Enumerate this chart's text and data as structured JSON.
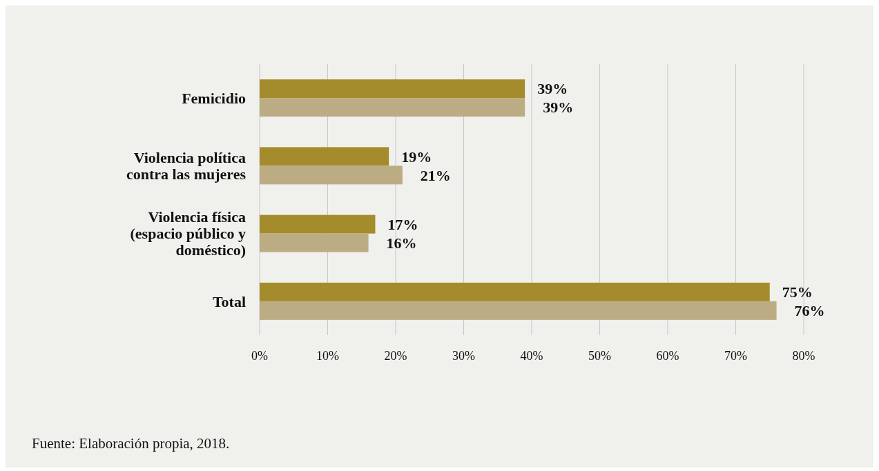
{
  "chart_data": {
    "type": "bar",
    "orientation": "horizontal",
    "categories": [
      "Femicidio",
      "Violencia política contra las mujeres",
      "Violencia física (espacio público y doméstico)",
      "Total"
    ],
    "series": [
      {
        "color": "#a48c2c",
        "values": [
          39,
          19,
          17,
          75
        ],
        "value_labels": [
          "39%",
          "19%",
          "17%",
          "75%"
        ]
      },
      {
        "color": "#bcac84",
        "values": [
          39,
          21,
          16,
          76
        ],
        "value_labels": [
          "39%",
          "21%",
          "16%",
          "76%"
        ]
      }
    ],
    "xlim": [
      0,
      80
    ],
    "xticks": [
      {
        "value": 0,
        "label": "0%"
      },
      {
        "value": 10,
        "label": "10%"
      },
      {
        "value": 20,
        "label": "20%"
      },
      {
        "value": 30,
        "label": "30%"
      },
      {
        "value": 40,
        "label": "40%"
      },
      {
        "value": 50,
        "label": "50%"
      },
      {
        "value": 60,
        "label": "60%"
      },
      {
        "value": 70,
        "label": "70%"
      },
      {
        "value": 80,
        "label": "80%"
      }
    ],
    "grid": "x",
    "annotations": [
      "Fuente: Elaboración propia, 2018."
    ]
  }
}
